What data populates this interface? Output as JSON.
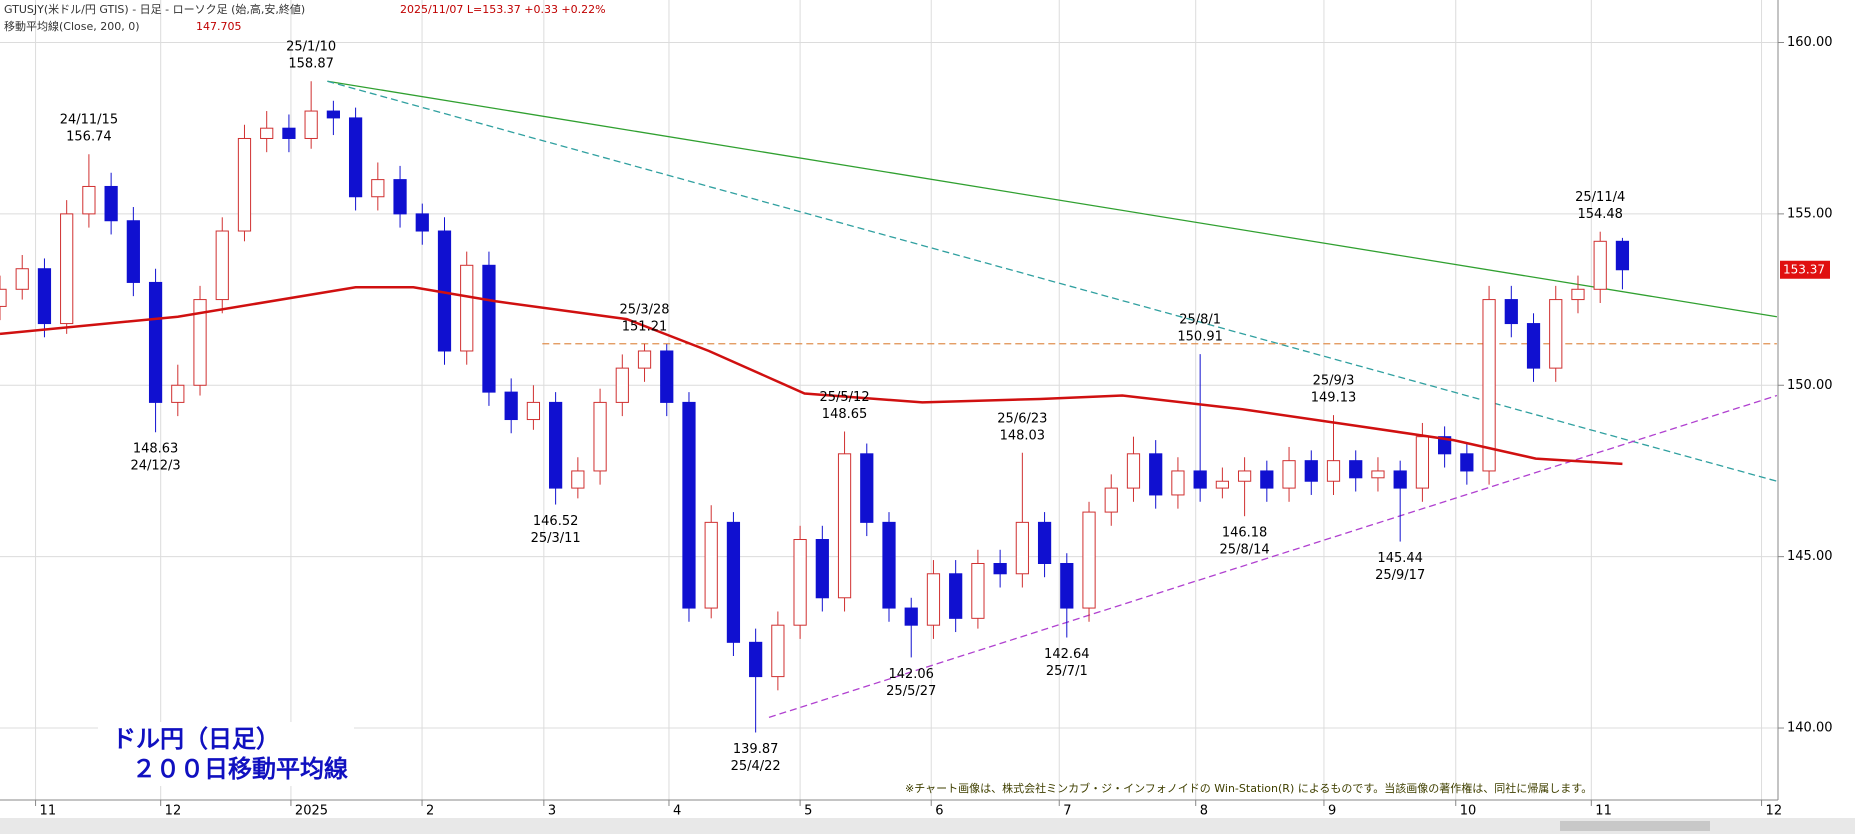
{
  "chart_data": {
    "type": "candlestick",
    "header": "GTUSJY(米ドル/円 GTIS) - 日足 - ローソク足 (始,高,安,終値)",
    "header_quote": "2025/11/07 L=153.37 +0.33 +0.22%",
    "ma_label": "移動平均線(Close, 200, 0)",
    "ma_last": 147.705,
    "title_lines": [
      "ドル円（日足）",
      "２００日移動平均線"
    ],
    "note": "※チャート画像は、株式会社ミンカブ・ジ・インフォノイドの Win-Station(R) によるものです。当該画像の著作権は、同社に帰属します。",
    "xlim": [
      0,
      80
    ],
    "xticks": [
      {
        "value": 1.6,
        "label": "11"
      },
      {
        "value": 7.23,
        "label": "12"
      },
      {
        "value": 13.09,
        "label": "2025"
      },
      {
        "value": 18.99,
        "label": "2"
      },
      {
        "value": 24.47,
        "label": "3"
      },
      {
        "value": 30.1,
        "label": "4"
      },
      {
        "value": 36.0,
        "label": "5"
      },
      {
        "value": 41.9,
        "label": "6"
      },
      {
        "value": 47.66,
        "label": "7"
      },
      {
        "value": 53.8,
        "label": "8"
      },
      {
        "value": 59.57,
        "label": "9"
      },
      {
        "value": 65.5,
        "label": "10"
      },
      {
        "value": 71.6,
        "label": "11"
      },
      {
        "value": 79.26,
        "label": "12"
      }
    ],
    "ylim": [
      137.9,
      161.24
    ],
    "yticks": [
      {
        "value": 140,
        "label": "140.00"
      },
      {
        "value": 145,
        "label": "145.00"
      },
      {
        "value": 150,
        "label": "150.00"
      },
      {
        "value": 155,
        "label": "155.00"
      },
      {
        "value": 160,
        "label": "160.00"
      }
    ],
    "grid": true,
    "up_color": "#d03030",
    "down_color": "#1010d0",
    "open": [
      152.3,
      152.8,
      153.4,
      151.8,
      155.0,
      155.8,
      154.8,
      153.0,
      149.5,
      150.0,
      152.5,
      154.5,
      157.2,
      157.5,
      157.2,
      158.0,
      157.8,
      155.5,
      156.0,
      155.0,
      154.5,
      151.0,
      153.5,
      149.8,
      149.0,
      149.5,
      147.0,
      147.5,
      149.5,
      150.5,
      151.0,
      149.5,
      143.5,
      146.0,
      142.5,
      141.5,
      143.0,
      145.5,
      143.8,
      148.0,
      146.0,
      143.5,
      143.0,
      144.5,
      143.2,
      144.8,
      144.5,
      146.0,
      144.8,
      143.5,
      146.3,
      147.0,
      148.0,
      146.8,
      147.5,
      147.0,
      147.2,
      147.5,
      147.0,
      147.8,
      147.2,
      147.8,
      147.3,
      147.5,
      147.0,
      148.5,
      148.0,
      147.5,
      152.5,
      151.8,
      150.5,
      152.5,
      152.8,
      154.2
    ],
    "high": [
      153.2,
      153.8,
      153.7,
      155.4,
      156.74,
      156.2,
      155.2,
      153.4,
      150.6,
      152.9,
      154.9,
      157.6,
      158.0,
      157.9,
      158.87,
      158.3,
      158.1,
      156.5,
      156.4,
      155.3,
      154.9,
      153.9,
      153.9,
      150.2,
      150.0,
      149.8,
      147.9,
      149.9,
      150.9,
      151.21,
      151.2,
      149.8,
      146.5,
      146.3,
      142.9,
      143.4,
      145.9,
      145.9,
      148.65,
      148.3,
      146.3,
      143.8,
      144.9,
      144.9,
      145.2,
      145.2,
      148.03,
      146.3,
      145.1,
      146.6,
      147.4,
      148.5,
      148.4,
      147.9,
      150.91,
      147.6,
      147.9,
      147.8,
      148.2,
      148.1,
      149.13,
      148.1,
      147.9,
      147.8,
      148.9,
      148.8,
      148.3,
      152.9,
      152.9,
      152.1,
      152.9,
      153.2,
      154.48,
      154.3
    ],
    "low": [
      151.9,
      152.5,
      151.4,
      151.5,
      154.6,
      154.4,
      152.6,
      148.63,
      149.1,
      149.7,
      152.1,
      154.2,
      156.8,
      156.8,
      156.9,
      157.3,
      155.1,
      155.1,
      154.6,
      154.1,
      150.6,
      150.6,
      149.4,
      148.6,
      148.7,
      146.52,
      146.7,
      147.1,
      149.1,
      150.1,
      149.1,
      143.1,
      143.2,
      142.1,
      139.87,
      141.1,
      142.6,
      143.4,
      143.4,
      145.6,
      143.1,
      142.06,
      142.6,
      142.8,
      142.9,
      144.1,
      144.1,
      144.4,
      142.64,
      143.1,
      145.9,
      146.6,
      146.4,
      146.4,
      146.6,
      146.7,
      146.18,
      146.6,
      146.6,
      146.8,
      146.8,
      146.9,
      146.9,
      145.44,
      146.6,
      147.6,
      147.1,
      147.1,
      151.4,
      150.1,
      150.1,
      152.1,
      152.4,
      152.8
    ],
    "close": [
      152.8,
      153.4,
      151.8,
      155.0,
      155.8,
      154.8,
      153.0,
      149.5,
      150.0,
      152.5,
      154.5,
      157.2,
      157.5,
      157.2,
      158.0,
      157.8,
      155.5,
      156.0,
      155.0,
      154.5,
      151.0,
      153.5,
      149.8,
      149.0,
      149.5,
      147.0,
      147.5,
      149.5,
      150.5,
      151.0,
      149.5,
      143.5,
      146.0,
      142.5,
      141.5,
      143.0,
      145.5,
      143.8,
      148.0,
      146.0,
      143.5,
      143.0,
      144.5,
      143.2,
      144.8,
      144.5,
      146.0,
      144.8,
      143.5,
      146.3,
      147.0,
      148.0,
      146.8,
      147.5,
      147.0,
      147.2,
      147.5,
      147.0,
      147.8,
      147.2,
      147.8,
      147.3,
      147.5,
      147.0,
      148.5,
      148.0,
      147.5,
      152.5,
      151.8,
      150.5,
      152.5,
      152.8,
      154.2,
      153.37
    ],
    "ma": {
      "color": "#d01010",
      "x": [
        0,
        8,
        16,
        18.6,
        22.3,
        28.2,
        31.9,
        36.2,
        41.5,
        46.8,
        50.5,
        55.9,
        61.2,
        65.4,
        69.1,
        73
      ],
      "values": [
        151.5,
        152.0,
        152.86,
        152.86,
        152.45,
        151.93,
        151.0,
        149.76,
        149.5,
        149.6,
        149.7,
        149.3,
        148.8,
        148.4,
        147.86,
        147.705
      ]
    },
    "lines": [
      {
        "color": "#30a030",
        "dash": false,
        "x": [
          14.73,
          79.95
        ],
        "values": [
          158.87,
          152.0
        ]
      },
      {
        "color": "#30a0a0",
        "dash": true,
        "x": [
          14.73,
          79.95
        ],
        "values": [
          158.87,
          147.2
        ]
      },
      {
        "color": "#b040d0",
        "dash": true,
        "x": [
          34.6,
          79.95
        ],
        "values": [
          140.31,
          149.7
        ]
      },
      {
        "color": "#e09050",
        "dash": true,
        "x": [
          24.4,
          79.95
        ],
        "values": [
          151.21,
          151.21
        ]
      }
    ],
    "annotations": [
      {
        "date": "24/11/15",
        "price": 156.74
      },
      {
        "date": "25/1/10",
        "price": 158.87
      },
      {
        "date": "25/3/28",
        "price": 151.21
      },
      {
        "date": "25/5/12",
        "price": 148.65
      },
      {
        "date": "25/6/23",
        "price": 148.03
      },
      {
        "date": "25/8/1",
        "price": 150.91
      },
      {
        "date": "25/9/3",
        "price": 149.13
      },
      {
        "date": "25/11/4",
        "price": 154.48
      },
      {
        "date": "24/12/3",
        "price": 148.63
      },
      {
        "date": "25/3/11",
        "price": 146.52
      },
      {
        "date": "25/4/22",
        "price": 139.87
      },
      {
        "date": "25/5/27",
        "price": 142.06
      },
      {
        "date": "25/7/1",
        "price": 142.64
      },
      {
        "date": "25/8/14",
        "price": 146.18
      },
      {
        "date": "25/9/17",
        "price": 145.44
      }
    ]
  }
}
